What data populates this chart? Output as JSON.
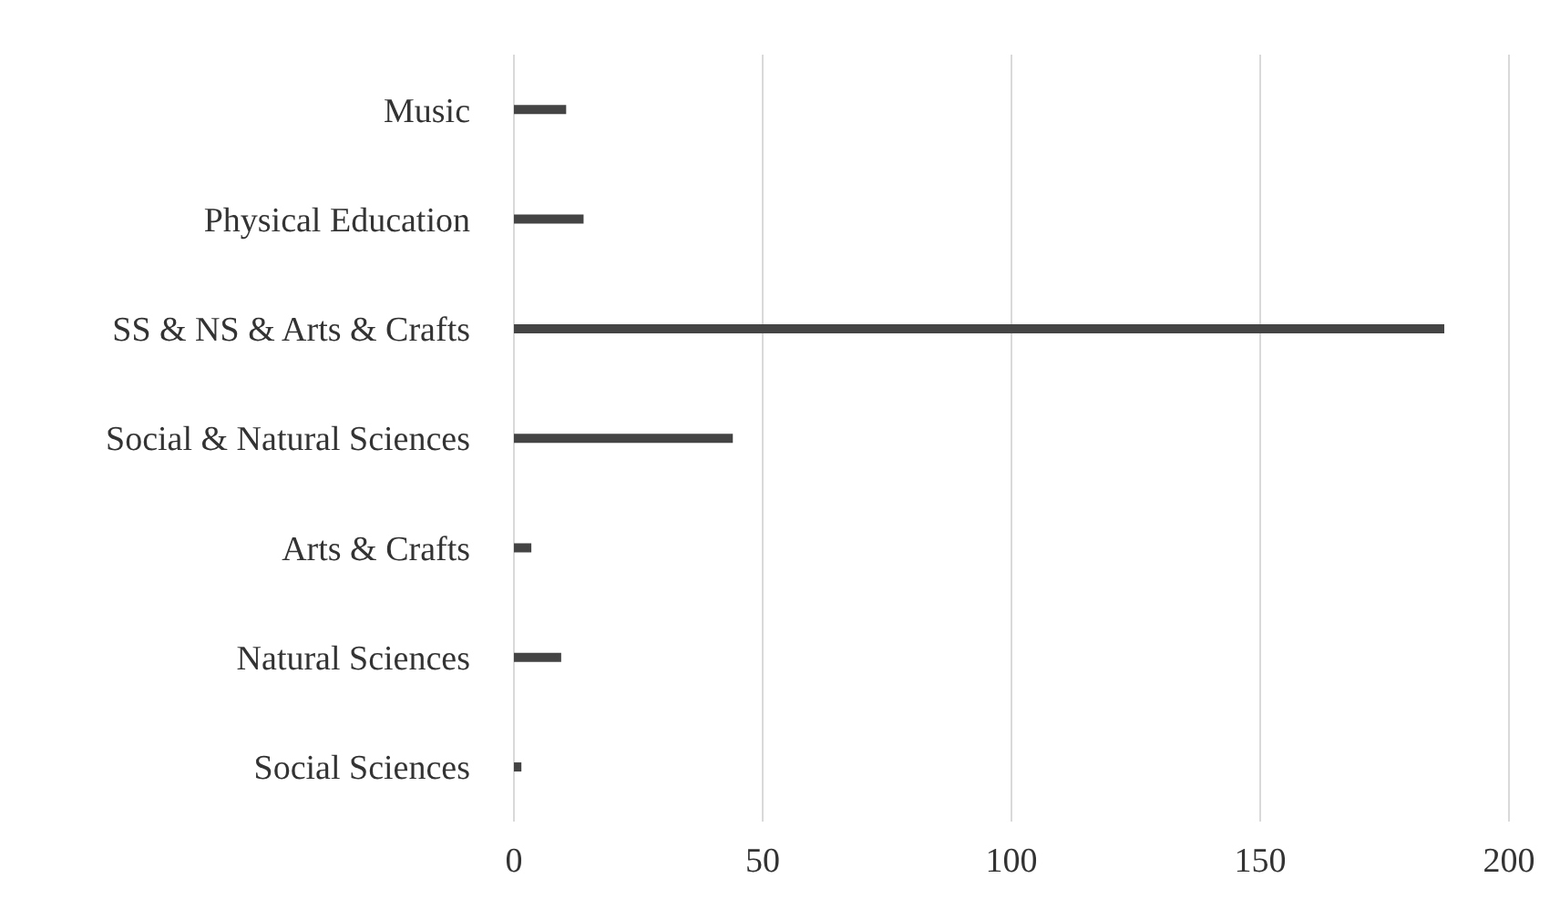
{
  "chart_data": {
    "type": "bar",
    "orientation": "horizontal",
    "categories": [
      "Music",
      "Physical Education",
      "SS & NS & Arts & Crafts",
      "Social & Natural Sciences",
      "Arts & Crafts",
      "Natural Sciences",
      "Social Sciences"
    ],
    "values": [
      10.5,
      14,
      187,
      44,
      3.5,
      9.5,
      1.5
    ],
    "color": "#444444",
    "xlim": [
      0,
      200
    ],
    "xticks": [
      0,
      50,
      100,
      150,
      200
    ],
    "grid": "x"
  }
}
